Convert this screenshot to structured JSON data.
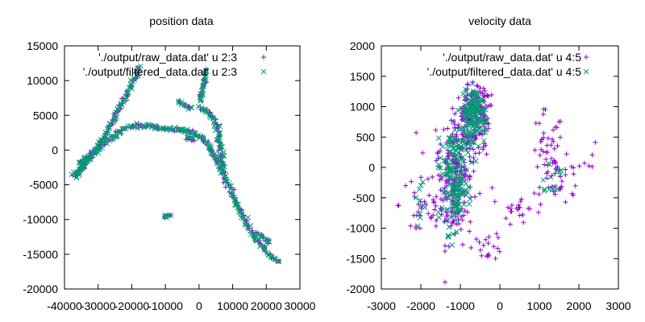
{
  "chart_data": [
    {
      "type": "scatter",
      "title": "position data",
      "xlabel": "",
      "ylabel": "",
      "xlim": [
        -40000,
        30000
      ],
      "ylim": [
        -20000,
        15000
      ],
      "xticks": [
        -40000,
        -30000,
        -20000,
        -10000,
        0,
        10000,
        20000,
        30000
      ],
      "yticks": [
        -20000,
        -15000,
        -10000,
        -5000,
        0,
        5000,
        10000,
        15000
      ],
      "legend_position": "top-right",
      "grid": false,
      "series": [
        {
          "name": "'./output/raw_data.dat' u 2:3",
          "marker": "+",
          "color": "#9400d3",
          "segments": [
            [
              [
                -36800,
                -3900
              ],
              [
                -34000,
                -2000
              ],
              [
                -30000,
                200
              ],
              [
                -26000,
                1800
              ],
              [
                -22000,
                3200
              ],
              [
                -18000,
                3600
              ],
              [
                -13000,
                3300
              ],
              [
                -8000,
                3000
              ],
              [
                -3000,
                2700
              ],
              [
                1000,
                1800
              ],
              [
                4000,
                -200
              ],
              [
                7000,
                -3000
              ],
              [
                10000,
                -6500
              ],
              [
                13500,
                -10000
              ],
              [
                17500,
                -13200
              ],
              [
                21000,
                -15200
              ],
              [
                24000,
                -16100
              ]
            ],
            [
              [
                -35000,
                -2200
              ],
              [
                -31000,
                0
              ],
              [
                -28000,
                2000
              ],
              [
                -26000,
                4000
              ],
              [
                -24000,
                5800
              ],
              [
                -22000,
                7500
              ],
              [
                -20000,
                9500
              ],
              [
                -18500,
                11000
              ],
              [
                -17500,
                12200
              ]
            ],
            [
              [
                -37500,
                -3500
              ],
              [
                -36000,
                -3200
              ],
              [
                -34000,
                -2300
              ]
            ],
            [
              [
                -35500,
                -1800
              ],
              [
                -34000,
                -1300
              ],
              [
                -33000,
                -800
              ]
            ],
            [
              [
                200,
                7000
              ],
              [
                900,
                8700
              ],
              [
                1500,
                10300
              ],
              [
                2200,
                11900
              ]
            ],
            [
              [
                300,
                6200
              ],
              [
                3000,
                5500
              ],
              [
                5000,
                4000
              ],
              [
                6000,
                2000
              ],
              [
                6500,
                0
              ],
              [
                7000,
                -3000
              ]
            ],
            [
              [
                -10800,
                -9700
              ],
              [
                -9500,
                -9400
              ],
              [
                -8200,
                -9200
              ]
            ],
            [
              [
                -6000,
                7000
              ],
              [
                -4000,
                6400
              ],
              [
                -2000,
                5900
              ]
            ],
            [
              [
                -4000,
                1800
              ],
              [
                -2500,
                1600
              ],
              [
                -1000,
                1400
              ]
            ],
            [
              [
                17500,
                -12000
              ],
              [
                19500,
                -12800
              ],
              [
                21500,
                -13500
              ]
            ]
          ]
        },
        {
          "name": "'./output/filtered_data.dat' u 2:3",
          "marker": "x",
          "color": "#009e73",
          "segments": [
            [
              [
                -36800,
                -3900
              ],
              [
                -34000,
                -2000
              ],
              [
                -30000,
                200
              ],
              [
                -26000,
                1800
              ],
              [
                -22000,
                3200
              ],
              [
                -18000,
                3600
              ],
              [
                -13000,
                3300
              ],
              [
                -8000,
                3000
              ],
              [
                -3000,
                2700
              ],
              [
                1000,
                1800
              ],
              [
                4000,
                -200
              ],
              [
                7000,
                -3000
              ],
              [
                10000,
                -6500
              ],
              [
                13500,
                -10000
              ],
              [
                17500,
                -13200
              ],
              [
                21000,
                -15200
              ],
              [
                24000,
                -16100
              ]
            ],
            [
              [
                -35000,
                -2200
              ],
              [
                -31000,
                0
              ],
              [
                -28000,
                2000
              ],
              [
                -26000,
                4000
              ],
              [
                -24000,
                5800
              ],
              [
                -22000,
                7500
              ],
              [
                -20000,
                9500
              ],
              [
                -18500,
                11000
              ],
              [
                -17500,
                12200
              ]
            ],
            [
              [
                -37500,
                -3500
              ],
              [
                -36000,
                -3200
              ],
              [
                -34000,
                -2300
              ]
            ],
            [
              [
                -35500,
                -1800
              ],
              [
                -34000,
                -1300
              ],
              [
                -33000,
                -800
              ]
            ],
            [
              [
                200,
                7000
              ],
              [
                900,
                8700
              ],
              [
                1500,
                10300
              ],
              [
                2200,
                11900
              ]
            ],
            [
              [
                300,
                6200
              ],
              [
                3000,
                5500
              ],
              [
                5000,
                4000
              ],
              [
                6000,
                2000
              ],
              [
                6500,
                0
              ],
              [
                7000,
                -3000
              ]
            ],
            [
              [
                -10800,
                -9700
              ],
              [
                -9500,
                -9400
              ],
              [
                -8200,
                -9200
              ]
            ],
            [
              [
                -6000,
                7000
              ],
              [
                -4000,
                6400
              ],
              [
                -2000,
                5900
              ]
            ],
            [
              [
                -4000,
                1800
              ],
              [
                -2500,
                1600
              ],
              [
                -1000,
                1400
              ]
            ],
            [
              [
                17500,
                -12000
              ],
              [
                19500,
                -12800
              ],
              [
                21500,
                -13500
              ]
            ]
          ]
        }
      ]
    },
    {
      "type": "scatter",
      "title": "velocity data",
      "xlabel": "",
      "ylabel": "",
      "xlim": [
        -3000,
        3000
      ],
      "ylim": [
        -2000,
        2000
      ],
      "xticks": [
        -3000,
        -2000,
        -1000,
        0,
        1000,
        2000,
        3000
      ],
      "yticks": [
        -2000,
        -1500,
        -1000,
        -500,
        0,
        500,
        1000,
        1500,
        2000
      ],
      "legend_position": "top-right",
      "grid": false,
      "series": [
        {
          "name": "'./output/raw_data.dat' u 4:5",
          "marker": "+",
          "color": "#9400d3",
          "clusters": [
            {
              "center": [
                -650,
                900
              ],
              "spread": [
                350,
                420
              ],
              "n": 170
            },
            {
              "center": [
                -1150,
                -300
              ],
              "spread": [
                420,
                850
              ],
              "n": 190
            },
            {
              "center": [
                -1000,
                300
              ],
              "spread": [
                650,
                450
              ],
              "n": 70
            },
            {
              "center": [
                -2000,
                -600
              ],
              "spread": [
                500,
                650
              ],
              "n": 30
            },
            {
              "center": [
                1200,
                200
              ],
              "spread": [
                380,
                650
              ],
              "n": 45
            },
            {
              "center": [
                1600,
                -250
              ],
              "spread": [
                500,
                350
              ],
              "n": 30
            },
            {
              "center": [
                500,
                -700
              ],
              "spread": [
                400,
                250
              ],
              "n": 22
            },
            {
              "center": [
                -300,
                -1300
              ],
              "spread": [
                350,
                200
              ],
              "n": 18
            },
            {
              "center": [
                2350,
                150
              ],
              "spread": [
                200,
                200
              ],
              "n": 5
            }
          ]
        },
        {
          "name": "'./output/filtered_data.dat' u 4:5",
          "marker": "x",
          "color": "#009e73",
          "clusters": [
            {
              "center": [
                -650,
                900
              ],
              "spread": [
                280,
                350
              ],
              "n": 130
            },
            {
              "center": [
                -1150,
                -300
              ],
              "spread": [
                320,
                700
              ],
              "n": 140
            },
            {
              "center": [
                -1000,
                300
              ],
              "spread": [
                500,
                380
              ],
              "n": 40
            },
            {
              "center": [
                -2100,
                -500
              ],
              "spread": [
                350,
                500
              ],
              "n": 10
            },
            {
              "center": [
                1300,
                -150
              ],
              "spread": [
                350,
                350
              ],
              "n": 14
            }
          ]
        }
      ]
    }
  ]
}
